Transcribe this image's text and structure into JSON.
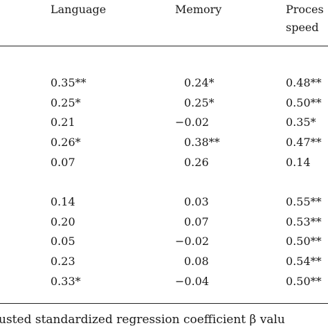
{
  "table": {
    "header": [
      [
        "Language"
      ],
      [
        "Memory"
      ],
      [
        "Proces",
        "speed"
      ]
    ],
    "groups": [
      [
        [
          "0.35**",
          "0.24*",
          "0.48**"
        ],
        [
          "0.25*",
          "0.25*",
          "0.50**"
        ],
        [
          "0.21",
          "−0.02",
          "0.35*"
        ],
        [
          "0.26*",
          "0.38**",
          "0.47**"
        ],
        [
          "0.07",
          "0.26",
          "0.14"
        ]
      ],
      [
        [
          "0.14",
          "0.03",
          "0.55**"
        ],
        [
          "0.20",
          "0.07",
          "0.53**"
        ],
        [
          "0.05",
          "−0.02",
          "0.50**"
        ],
        [
          "0.23",
          "0.08",
          "0.54**"
        ],
        [
          "0.33*",
          "−0.04",
          "0.50**"
        ]
      ]
    ]
  },
  "footnote": "usted standardized regression coefficient β valu"
}
